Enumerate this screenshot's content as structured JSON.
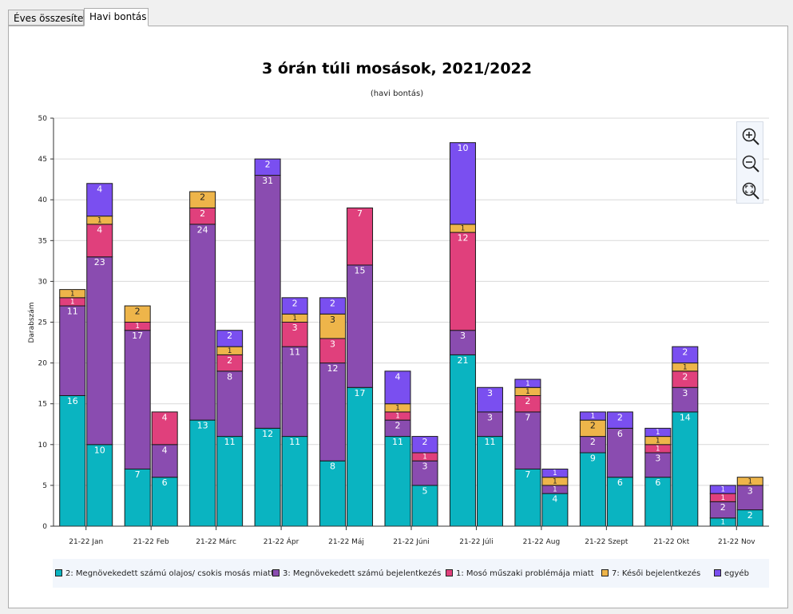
{
  "tabs": [
    {
      "label": "Éves összesített",
      "active": false
    },
    {
      "label": "Havi bontás",
      "active": true
    }
  ],
  "zoom_controls": [
    {
      "icon": "zoom-in-icon"
    },
    {
      "icon": "zoom-out-icon"
    },
    {
      "icon": "zoom-reset-icon"
    }
  ],
  "chart_data": {
    "type": "bar",
    "stacked": true,
    "title": "3 órán túli mosások, 2021/2022",
    "subtitle": "(havi bontás)",
    "ylabel": "Darabszám",
    "ylim": [
      0,
      50
    ],
    "yticks": [
      0,
      5,
      10,
      15,
      20,
      25,
      30,
      35,
      40,
      45,
      50
    ],
    "grid": true,
    "legend_position": "bottom",
    "categories": [
      "21-22 Jan",
      "21-22 Feb",
      "21-22 Márc",
      "21-22 Ápr",
      "21-22 Máj",
      "21-22 Júni",
      "21-22 Júli",
      "21-22 Aug",
      "21-22 Szept",
      "21-22 Okt",
      "21-22 Nov"
    ],
    "bars_per_category": 2,
    "series": [
      {
        "name": "2: Megnövekedett számú olajos/ csokis mosás miatt",
        "color": "#0ab4c1",
        "values": [
          [
            16,
            10
          ],
          [
            7,
            6
          ],
          [
            13,
            11
          ],
          [
            12,
            11
          ],
          [
            8,
            17
          ],
          [
            11,
            5
          ],
          [
            21,
            11
          ],
          [
            7,
            4
          ],
          [
            9,
            6
          ],
          [
            6,
            14
          ],
          [
            1,
            2
          ]
        ]
      },
      {
        "name": "3: Megnövekedett számú bejelentkezés",
        "color": "#8a4cb0",
        "values": [
          [
            11,
            23
          ],
          [
            17,
            4
          ],
          [
            24,
            8
          ],
          [
            31,
            11
          ],
          [
            12,
            15
          ],
          [
            2,
            3
          ],
          [
            3,
            3
          ],
          [
            7,
            1
          ],
          [
            2,
            6
          ],
          [
            3,
            3
          ],
          [
            2,
            3
          ]
        ]
      },
      {
        "name": "1: Mosó műszaki problémája miatt",
        "color": "#e0407c",
        "values": [
          [
            1,
            4
          ],
          [
            1,
            4
          ],
          [
            2,
            2
          ],
          [
            0,
            3
          ],
          [
            3,
            7
          ],
          [
            1,
            1
          ],
          [
            12,
            0
          ],
          [
            2,
            0
          ],
          [
            0,
            0
          ],
          [
            1,
            2
          ],
          [
            1,
            0
          ]
        ]
      },
      {
        "name": "7: Késői bejelentkezés",
        "color": "#eeb54a",
        "values": [
          [
            1,
            1
          ],
          [
            2,
            0
          ],
          [
            2,
            1
          ],
          [
            0,
            1
          ],
          [
            3,
            0
          ],
          [
            1,
            0
          ],
          [
            1,
            0
          ],
          [
            1,
            1
          ],
          [
            2,
            0
          ],
          [
            1,
            1
          ],
          [
            0,
            1
          ]
        ]
      },
      {
        "name": "egyéb",
        "color": "#7a4ff0",
        "values": [
          [
            0,
            4
          ],
          [
            0,
            0
          ],
          [
            0,
            2
          ],
          [
            2,
            2
          ],
          [
            2,
            0
          ],
          [
            4,
            2
          ],
          [
            10,
            3
          ],
          [
            1,
            1
          ],
          [
            1,
            2
          ],
          [
            1,
            2
          ],
          [
            1,
            0
          ]
        ]
      }
    ]
  }
}
